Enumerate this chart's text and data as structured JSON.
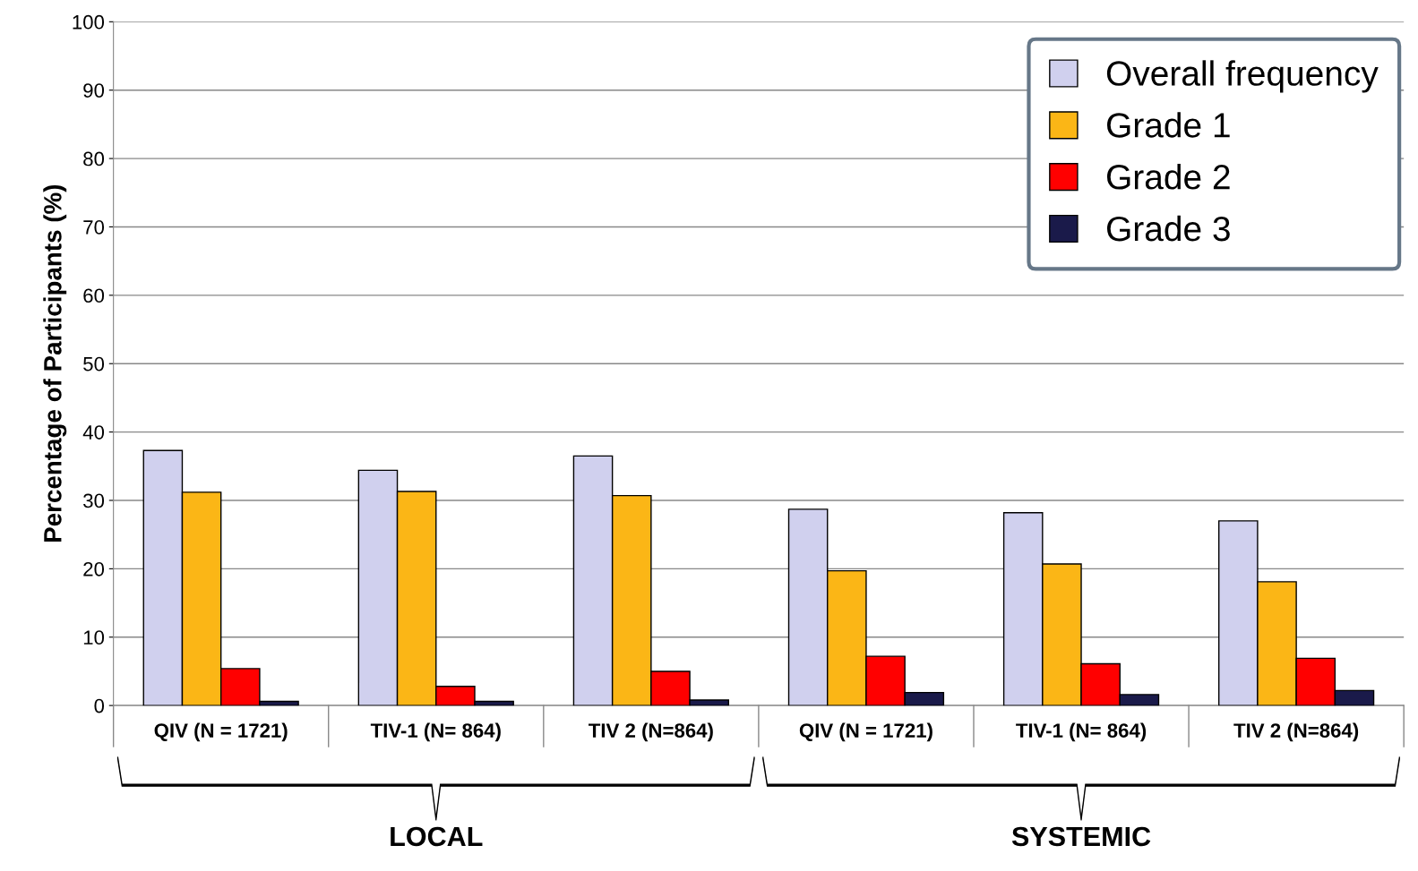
{
  "chart_data": {
    "type": "bar",
    "ylabel": "Percentage of Participants (%)",
    "categories": [
      "QIV (N = 1721)",
      "TIV-1 (N= 864)",
      "TIV 2 (N=864)",
      "QIV (N = 1721)",
      "TIV-1 (N= 864)",
      "TIV 2 (N=864)"
    ],
    "series": [
      {
        "name": "Overall frequency",
        "color": "#d0d0ee",
        "values": [
          37.3,
          34.4,
          36.5,
          28.7,
          28.2,
          27.0
        ]
      },
      {
        "name": "Grade 1",
        "color": "#fbb616",
        "values": [
          31.2,
          31.3,
          30.7,
          19.7,
          20.7,
          18.1
        ]
      },
      {
        "name": "Grade 2",
        "color": "#ff0000",
        "values": [
          5.4,
          2.8,
          5.0,
          7.2,
          6.1,
          6.9
        ]
      },
      {
        "name": "Grade 3",
        "color": "#1a1a4a",
        "values": [
          0.6,
          0.6,
          0.8,
          1.9,
          1.6,
          2.2
        ]
      }
    ],
    "ylim": [
      0,
      100
    ],
    "yticks": [
      0,
      10,
      20,
      30,
      40,
      50,
      60,
      70,
      80,
      90,
      100
    ],
    "grid": "y",
    "legend": "top right",
    "annotations": [
      "LOCAL",
      "SYSTEMIC"
    ]
  }
}
